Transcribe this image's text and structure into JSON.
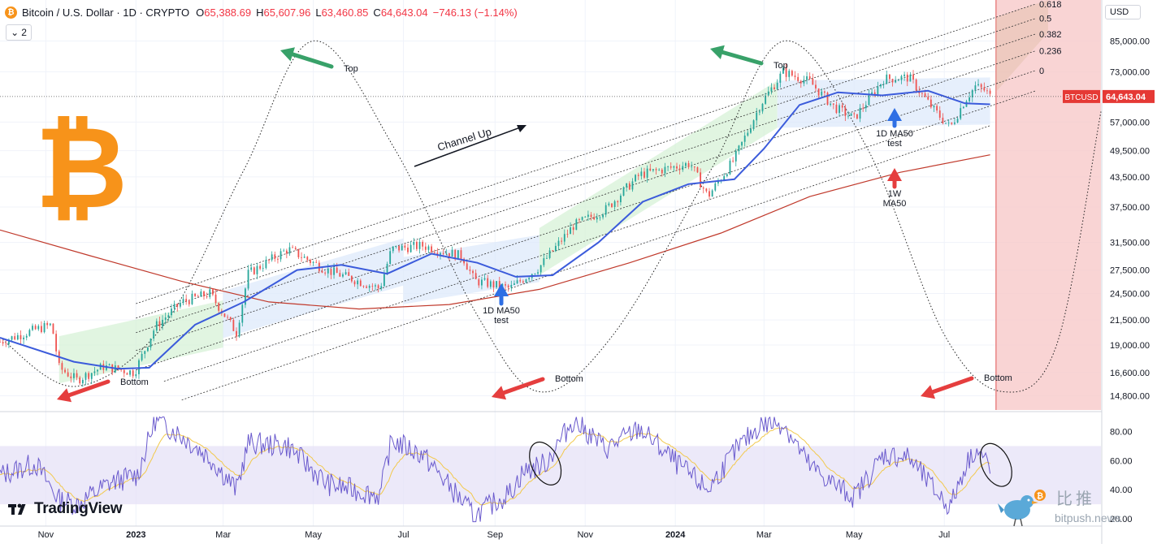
{
  "header": {
    "coin_symbol": "₿",
    "title": "Bitcoin / U.S. Dollar · 1D · CRYPTO",
    "open_label": "O",
    "open": "65,388.69",
    "high_label": "H",
    "high": "65,607.96",
    "low_label": "L",
    "low": "63,460.85",
    "close_label": "C",
    "close": "64,643.04",
    "change": "−746.13 (−1.14%)"
  },
  "indicator_toggle": {
    "chevron": "⌄",
    "count": "2"
  },
  "currency": "USD",
  "branding": {
    "logo_text": "TradingView",
    "watermark_cn": "比推",
    "watermark_url": "bitpush.news"
  },
  "colors": {
    "price_line": "#3b5bdb",
    "ma_long": "#c0392b",
    "channel_line": "#333333",
    "up_candle": "#26a69a",
    "down_candle": "#ef5350",
    "green_arrow": "#38a169",
    "red_arrow": "#e53e3e",
    "blue_arrow": "#2f6fe4",
    "red_zone": "#f8c9c9",
    "rsi_line": "#6a5acd",
    "rsi_ma": "#f2c94c",
    "rsi_band": "#e4e0f7",
    "bitcoin_logo": "#f7931a"
  },
  "chart_data": [
    {
      "type": "line",
      "title": "Bitcoin / U.S. Dollar · 1D · CRYPTO",
      "x_labels": [
        "Nov",
        "2023",
        "Mar",
        "May",
        "Jul",
        "Sep",
        "Nov",
        "2024",
        "Mar",
        "May",
        "Jul"
      ],
      "x_start": "2022-10-01",
      "x_end": "2024-10-15",
      "y_scale": "log",
      "y_ticks": [
        "85,000.00",
        "73,000.00",
        "57,000.00",
        "49,500.00",
        "43,500.00",
        "37,500.00",
        "31,500.00",
        "27,500.00",
        "24,500.00",
        "21,500.00",
        "19,000.00",
        "16,600.00",
        "14,800.00"
      ],
      "y_tick_values": [
        85000,
        73000,
        57000,
        49500,
        43500,
        37500,
        31500,
        27500,
        24500,
        21500,
        19000,
        16600,
        14800
      ],
      "ylim": [
        13800,
        104000
      ],
      "last_price": {
        "label": "BTCUSD",
        "value": "64,643.04",
        "y": 64643.04
      },
      "series": [
        {
          "name": "",
          "role": "price",
          "points": [
            [
              "2022-10-01",
              19300
            ],
            [
              "2022-10-25",
              20500
            ],
            [
              "2022-11-05",
              21000
            ],
            [
              "2022-11-10",
              17000
            ],
            [
              "2022-11-22",
              16000
            ],
            [
              "2022-12-10",
              17100
            ],
            [
              "2022-12-31",
              16600
            ],
            [
              "2023-01-14",
              20800
            ],
            [
              "2023-02-01",
              23500
            ],
            [
              "2023-02-20",
              24500
            ],
            [
              "2023-03-10",
              20200
            ],
            [
              "2023-03-18",
              27000
            ],
            [
              "2023-04-14",
              30500
            ],
            [
              "2023-05-10",
              27500
            ],
            [
              "2023-06-15",
              25100
            ],
            [
              "2023-06-23",
              30500
            ],
            [
              "2023-07-14",
              31000
            ],
            [
              "2023-08-10",
              29400
            ],
            [
              "2023-08-18",
              26100
            ],
            [
              "2023-09-11",
              25100
            ],
            [
              "2023-10-01",
              27900
            ],
            [
              "2023-10-24",
              34200
            ],
            [
              "2023-11-15",
              37100
            ],
            [
              "2023-12-08",
              44000
            ],
            [
              "2024-01-11",
              46500
            ],
            [
              "2024-01-23",
              39500
            ],
            [
              "2024-02-10",
              47500
            ],
            [
              "2024-02-28",
              62500
            ],
            [
              "2024-03-14",
              73000
            ],
            [
              "2024-04-01",
              69500
            ],
            [
              "2024-04-17",
              61500
            ],
            [
              "2024-05-01",
              58000
            ],
            [
              "2024-05-21",
              70500
            ],
            [
              "2024-06-07",
              71000
            ],
            [
              "2024-06-24",
              60500
            ],
            [
              "2024-07-05",
              55500
            ],
            [
              "2024-07-15",
              63500
            ],
            [
              "2024-07-22",
              68000
            ],
            [
              "2024-07-29",
              66500
            ],
            [
              "2024-08-01",
              64643
            ]
          ]
        },
        {
          "name": "",
          "role": "1D MA50",
          "points": [
            [
              "2022-10-01",
              19700
            ],
            [
              "2022-11-20",
              17500
            ],
            [
              "2022-12-20",
              16900
            ],
            [
              "2023-01-10",
              17000
            ],
            [
              "2023-02-10",
              21000
            ],
            [
              "2023-03-15",
              23500
            ],
            [
              "2023-04-20",
              27500
            ],
            [
              "2023-05-20",
              28200
            ],
            [
              "2023-06-20",
              27000
            ],
            [
              "2023-07-20",
              29800
            ],
            [
              "2023-08-20",
              28500
            ],
            [
              "2023-09-15",
              26600
            ],
            [
              "2023-10-10",
              26800
            ],
            [
              "2023-11-10",
              31500
            ],
            [
              "2023-12-10",
              38500
            ],
            [
              "2024-01-10",
              42000
            ],
            [
              "2024-02-10",
              43000
            ],
            [
              "2024-03-01",
              50000
            ],
            [
              "2024-03-25",
              62000
            ],
            [
              "2024-04-20",
              66000
            ],
            [
              "2024-05-20",
              65000
            ],
            [
              "2024-06-20",
              66500
            ],
            [
              "2024-07-15",
              62500
            ],
            [
              "2024-08-01",
              62200
            ]
          ]
        },
        {
          "name": "",
          "role": "1W MA50",
          "points": [
            [
              "2022-10-01",
              33500
            ],
            [
              "2022-12-01",
              29500
            ],
            [
              "2023-02-01",
              26000
            ],
            [
              "2023-04-01",
              23500
            ],
            [
              "2023-06-01",
              22700
            ],
            [
              "2023-08-01",
              23200
            ],
            [
              "2023-10-01",
              25000
            ],
            [
              "2023-12-01",
              28500
            ],
            [
              "2024-02-01",
              33000
            ],
            [
              "2024-04-01",
              39500
            ],
            [
              "2024-06-01",
              44500
            ],
            [
              "2024-08-01",
              48500
            ]
          ]
        }
      ],
      "channel_lines": [
        {
          "label": "0.618",
          "from": [
            "2023-01-01",
            23300
          ],
          "to": [
            "2024-09-01",
            102000
          ]
        },
        {
          "label": "0.5",
          "from": [
            "2023-01-01",
            21700
          ],
          "to": [
            "2024-09-01",
            95000
          ]
        },
        {
          "label": "0.382",
          "from": [
            "2023-01-01",
            20200
          ],
          "to": [
            "2024-09-01",
            88000
          ]
        },
        {
          "label": "0.236",
          "from": [
            "2023-01-01",
            18500
          ],
          "to": [
            "2024-09-01",
            81000
          ]
        },
        {
          "label": "0",
          "from": [
            "2023-01-01",
            16800
          ],
          "to": [
            "2024-09-01",
            73500
          ]
        },
        {
          "label": "",
          "from": [
            "2023-01-20",
            15900
          ],
          "to": [
            "2024-09-01",
            66500
          ]
        },
        {
          "label": "",
          "from": [
            "2023-02-01",
            14500
          ],
          "to": [
            "2024-08-01",
            56000
          ]
        }
      ],
      "cycle_curve": {
        "points": [
          [
            "2022-10-01",
            19700
          ],
          [
            "2022-11-21",
            15500
          ],
          [
            "2023-01-20",
            21000
          ],
          [
            "2023-03-15",
            45000
          ],
          [
            "2023-05-01",
            85000
          ],
          [
            "2023-06-25",
            50000
          ],
          [
            "2023-08-20",
            22000
          ],
          [
            "2023-10-01",
            15100
          ],
          [
            "2023-11-20",
            20000
          ],
          [
            "2024-01-25",
            45000
          ],
          [
            "2024-03-15",
            85000
          ],
          [
            "2024-05-10",
            50000
          ],
          [
            "2024-07-01",
            20000
          ],
          [
            "2024-08-10",
            15100
          ],
          [
            "2024-09-15",
            19000
          ],
          [
            "2024-10-15",
            60000
          ]
        ]
      },
      "prediction_zone_start": "2024-08-05",
      "annotations": [
        {
          "text": "Top",
          "x": "2023-06-20",
          "y": 78000,
          "arrow": "green"
        },
        {
          "text": "Top",
          "x": "2024-05-05",
          "y": 77000,
          "arrow": "green"
        },
        {
          "text": "Bottom",
          "x": "2023-01-18",
          "y": 16000,
          "arrow": "red"
        },
        {
          "text": "Bottom",
          "x": "2023-11-20",
          "y": 16300,
          "arrow": "red"
        },
        {
          "text": "Bottom",
          "x": "2024-09-20",
          "y": 16300,
          "arrow": "red"
        },
        {
          "text": "Channel Up",
          "x": "2023-07-20",
          "y": 50000
        },
        {
          "lines": [
            "1D MA50",
            "test"
          ],
          "x": "2023-10-08",
          "y": 23200,
          "arrow": "blue"
        },
        {
          "lines": [
            "1D MA50",
            "test"
          ],
          "x": "2024-08-01",
          "y": 54000,
          "arrow": "blue"
        },
        {
          "lines": [
            "1W",
            "MA50"
          ],
          "x": "2024-08-01",
          "y": 41500,
          "arrow": "red"
        }
      ]
    },
    {
      "type": "line",
      "title": "",
      "x_labels": [
        "Nov",
        "2023",
        "Mar",
        "May",
        "Jul",
        "Sep",
        "Nov",
        "2024",
        "Mar",
        "May",
        "Jul"
      ],
      "y_ticks": [
        "80.00",
        "60.00",
        "40.00",
        "20.00"
      ],
      "y_tick_values": [
        80,
        60,
        40,
        20
      ],
      "ylim": [
        15,
        92
      ],
      "band": [
        30,
        70
      ],
      "series": [
        {
          "name": "",
          "role": "RSI",
          "points": [
            [
              "2022-10-01",
              50
            ],
            [
              "2022-10-25",
              58
            ],
            [
              "2022-11-10",
              33
            ],
            [
              "2022-11-22",
              30
            ],
            [
              "2022-12-15",
              45
            ],
            [
              "2023-01-02",
              50
            ],
            [
              "2023-01-14",
              88
            ],
            [
              "2023-01-28",
              80
            ],
            [
              "2023-02-20",
              62
            ],
            [
              "2023-03-10",
              40
            ],
            [
              "2023-03-18",
              72
            ],
            [
              "2023-04-14",
              70
            ],
            [
              "2023-05-10",
              44
            ],
            [
              "2023-06-15",
              36
            ],
            [
              "2023-06-23",
              74
            ],
            [
              "2023-07-14",
              64
            ],
            [
              "2023-08-18",
              22
            ],
            [
              "2023-09-11",
              38
            ],
            [
              "2023-09-20",
              52
            ],
            [
              "2023-10-05",
              58
            ],
            [
              "2023-10-24",
              88
            ],
            [
              "2023-11-15",
              68
            ],
            [
              "2023-12-08",
              82
            ],
            [
              "2024-01-05",
              55
            ],
            [
              "2024-01-23",
              40
            ],
            [
              "2024-02-10",
              66
            ],
            [
              "2024-02-28",
              85
            ],
            [
              "2024-03-14",
              86
            ],
            [
              "2024-04-01",
              56
            ],
            [
              "2024-04-17",
              44
            ],
            [
              "2024-05-01",
              35
            ],
            [
              "2024-05-21",
              64
            ],
            [
              "2024-06-07",
              62
            ],
            [
              "2024-06-24",
              40
            ],
            [
              "2024-07-05",
              28
            ],
            [
              "2024-07-15",
              56
            ],
            [
              "2024-07-22",
              68
            ],
            [
              "2024-07-29",
              60
            ],
            [
              "2024-08-01",
              52
            ]
          ]
        }
      ],
      "highlight_ellipses": [
        {
          "center": [
            "2023-10-05",
            58
          ]
        },
        {
          "center": [
            "2024-08-05",
            57
          ]
        }
      ]
    }
  ]
}
